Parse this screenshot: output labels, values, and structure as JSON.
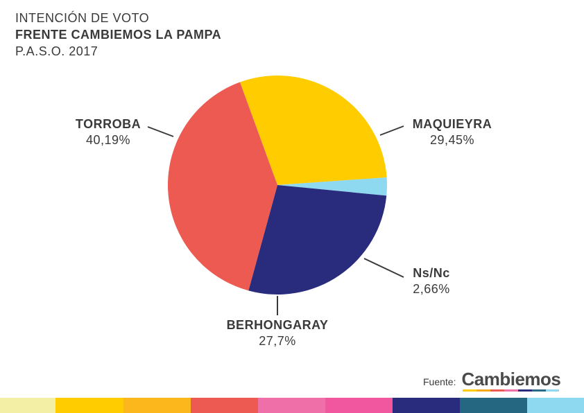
{
  "title": {
    "line1": "INTENCIÓN DE VOTO",
    "line2": "FRENTE CAMBIEMOS LA PAMPA",
    "line3": "P.A.S.O. 2017"
  },
  "chart_data": {
    "type": "pie",
    "slices": [
      {
        "name": "MAQUIEYRA",
        "label": "29,45%",
        "value": 29.45,
        "color": "#FFCC00"
      },
      {
        "name": "Ns/Nc",
        "label": "2,66%",
        "value": 2.66,
        "color": "#8ED8F0"
      },
      {
        "name": "BERHONGARAY",
        "label": "27,7%",
        "value": 27.7,
        "color": "#292C7C"
      },
      {
        "name": "TORROBA",
        "label": "40,19%",
        "value": 40.19,
        "color": "#EC5A52"
      }
    ]
  },
  "source": {
    "label": "Fuente:",
    "logo_text": "Cambiemos"
  },
  "colors": {
    "logo_bar": [
      "#FFCC00",
      "#F7A81B",
      "#EC5A52",
      "#EF6FA8",
      "#292C7C",
      "#2A6983",
      "#8ED8F0"
    ],
    "strip": [
      "#F3EFA5",
      "#FFCC00",
      "#FCB71C",
      "#EC5A52",
      "#EF6FA8",
      "#F0579E",
      "#292C7C",
      "#256780",
      "#8ED8F0"
    ]
  }
}
